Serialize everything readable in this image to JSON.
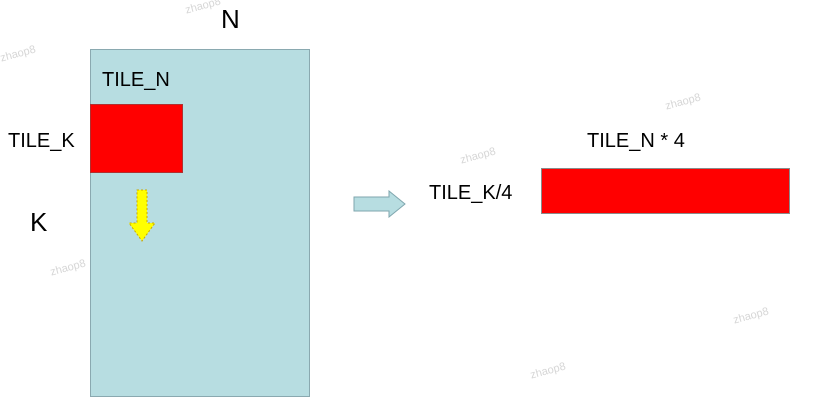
{
  "labels": {
    "n": "N",
    "tile_n": "TILE_N",
    "tile_k": "TILE_K",
    "k": "K",
    "tile_k_div4": "TILE_K/4",
    "tile_n_times4": "TILE_N * 4"
  },
  "watermark": "zhaop8",
  "colors": {
    "matrix_fill": "#b7dde1",
    "tile_fill": "#ff0000",
    "down_arrow_fill": "#ffff00",
    "right_arrow_fill": "#b7dde1"
  }
}
